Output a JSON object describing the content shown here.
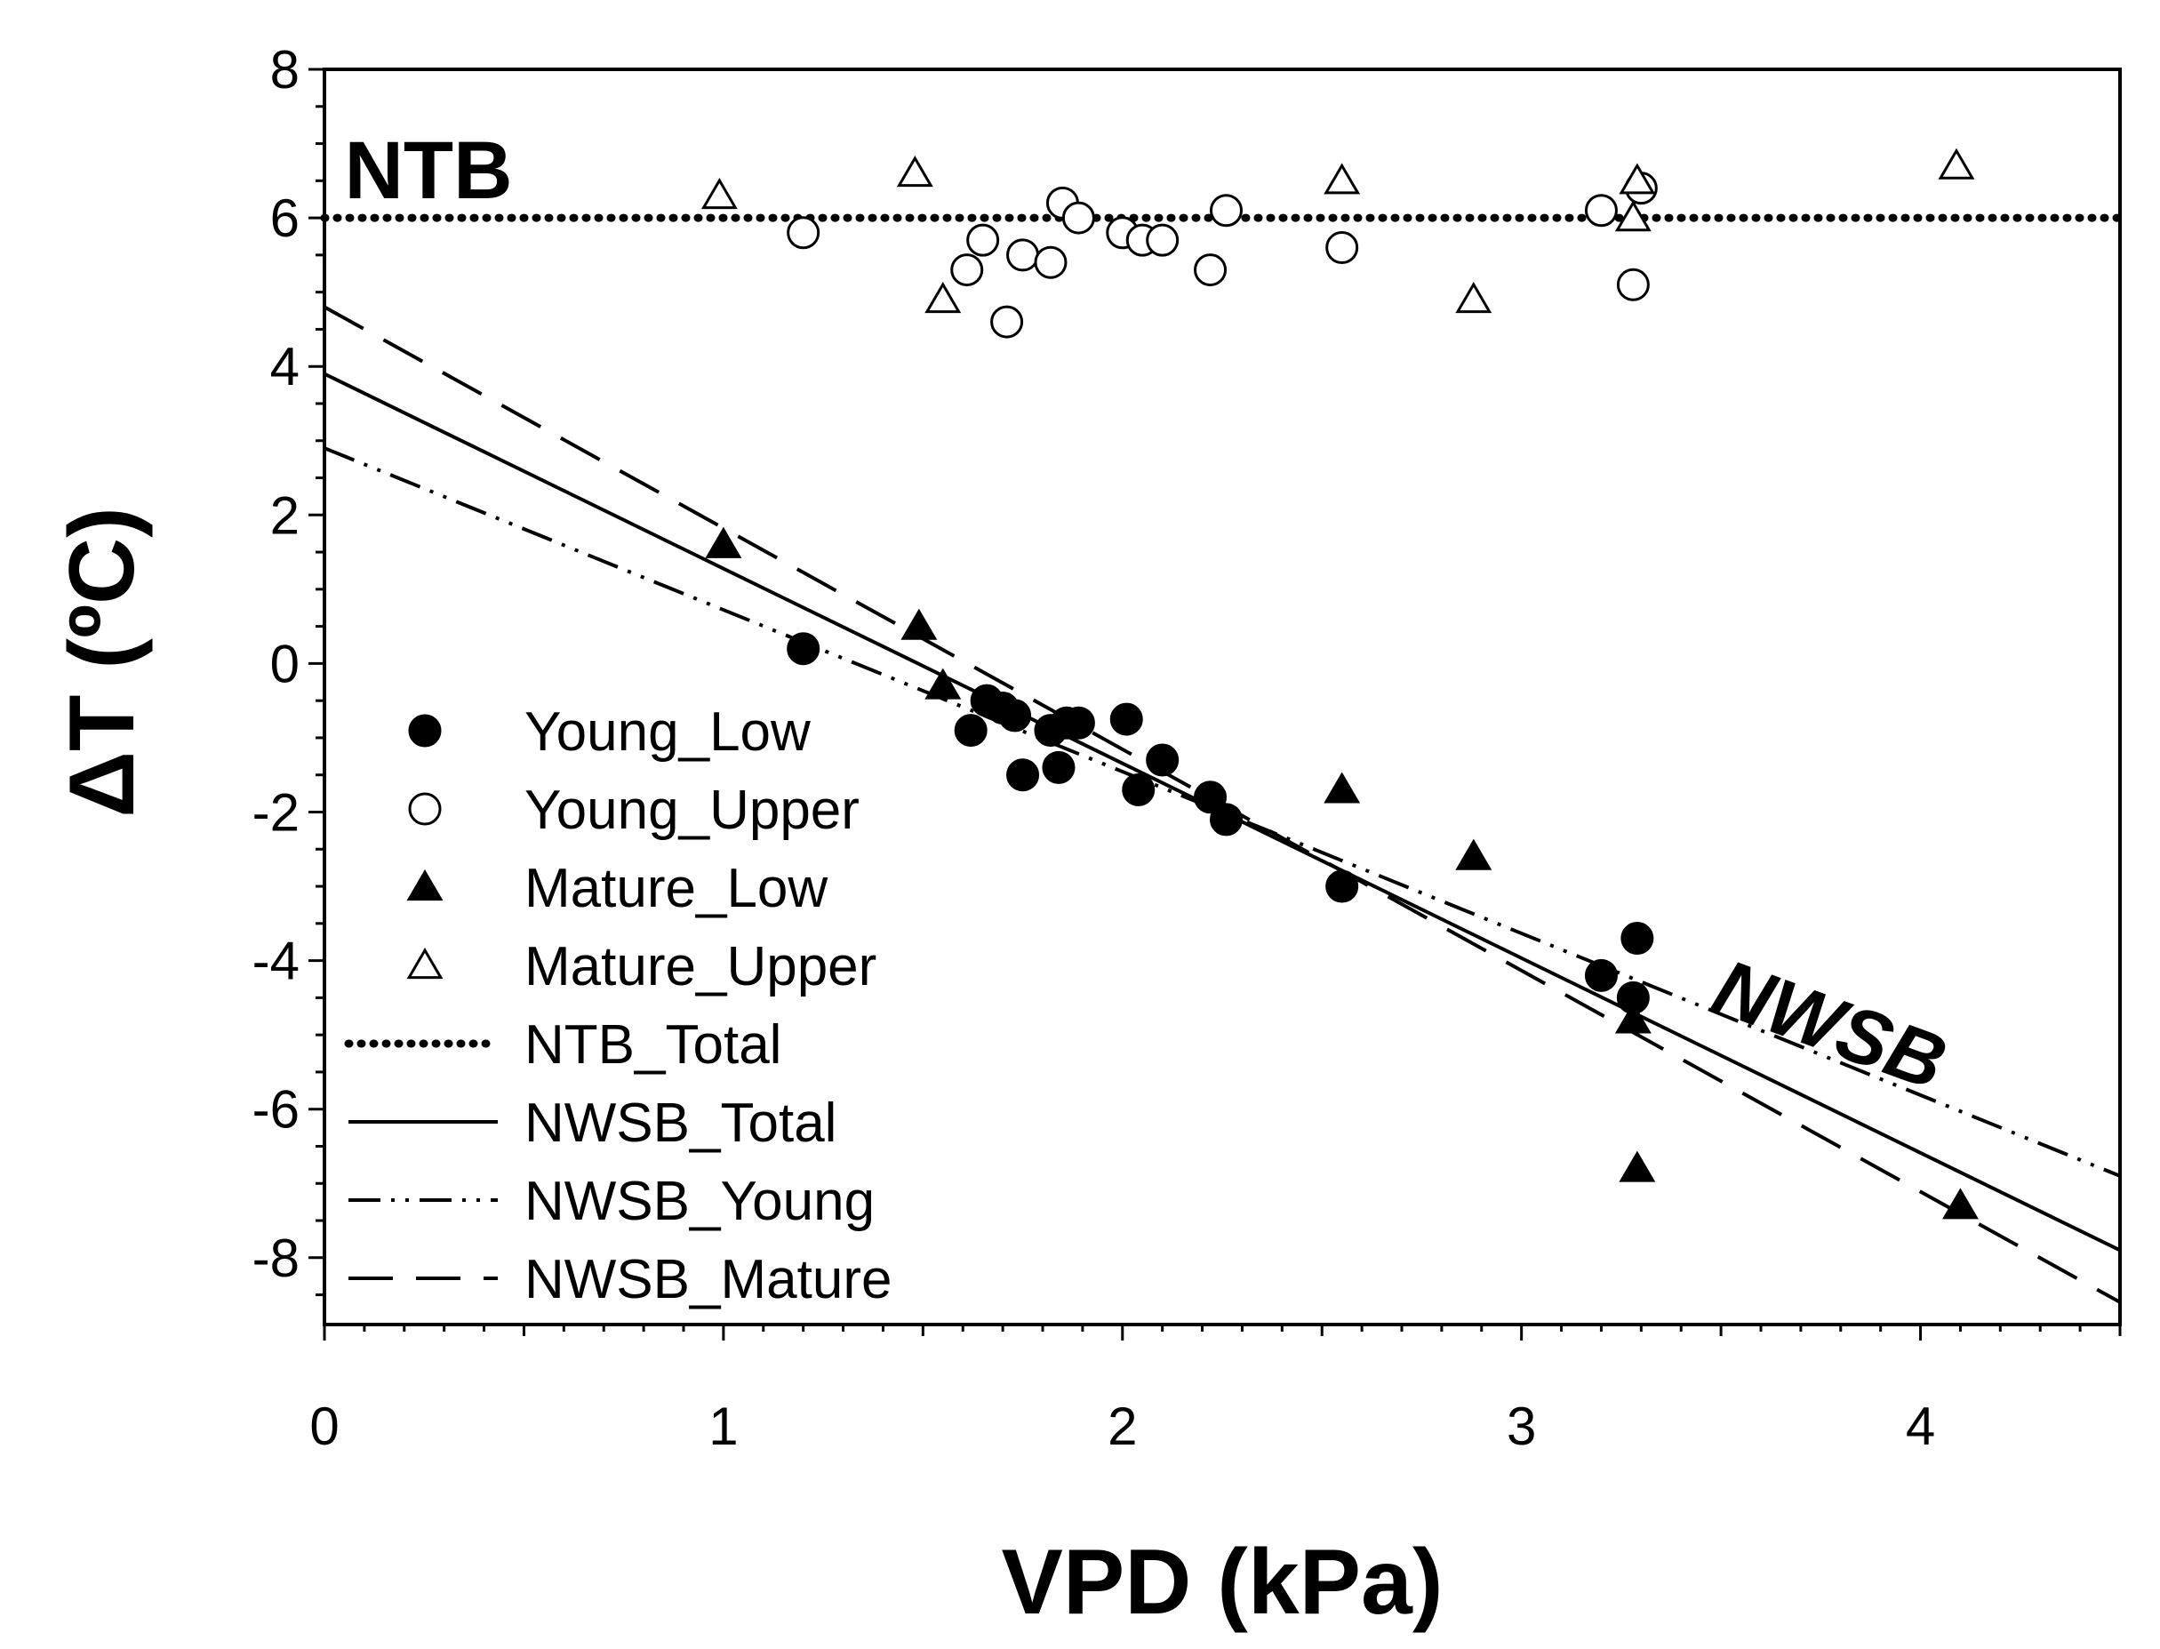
{
  "chart_data": {
    "type": "scatter",
    "xlabel": "VPD (kPa)",
    "ylabel": "ΔT (ºC)",
    "xlim": [
      0,
      4.5
    ],
    "ylim": [
      -8.9,
      8
    ],
    "xticks": [
      "0",
      "1",
      "2",
      "3",
      "4"
    ],
    "yticks": [
      "8",
      "6",
      "4",
      "2",
      "0",
      "-2",
      "-4",
      "-6",
      "-8"
    ],
    "grid": false,
    "legend_position": "lower-left",
    "annotations": [
      {
        "text": "NTB",
        "x": 0.05,
        "y": 6.6
      },
      {
        "text": "NWSB",
        "x": 3.75,
        "y": -5.2
      }
    ],
    "series": [
      {
        "name": "Young_Low",
        "marker": "filled-circle",
        "points": [
          [
            1.2,
            0.2
          ],
          [
            1.62,
            -0.9
          ],
          [
            1.66,
            -0.5
          ],
          [
            1.7,
            -0.6
          ],
          [
            1.73,
            -0.7
          ],
          [
            1.75,
            -1.5
          ],
          [
            1.82,
            -0.9
          ],
          [
            1.84,
            -1.4
          ],
          [
            1.86,
            -0.8
          ],
          [
            1.89,
            -0.8
          ],
          [
            2.01,
            -0.75
          ],
          [
            2.04,
            -1.7
          ],
          [
            2.1,
            -1.3
          ],
          [
            2.22,
            -1.8
          ],
          [
            2.26,
            -2.1
          ],
          [
            2.55,
            -3.0
          ],
          [
            3.2,
            -4.2
          ],
          [
            3.28,
            -4.5
          ],
          [
            3.29,
            -3.7
          ]
        ]
      },
      {
        "name": "Young_Upper",
        "marker": "open-circle",
        "points": [
          [
            1.2,
            5.8
          ],
          [
            1.61,
            5.3
          ],
          [
            1.65,
            5.7
          ],
          [
            1.71,
            4.6
          ],
          [
            1.75,
            5.5
          ],
          [
            1.82,
            5.4
          ],
          [
            1.85,
            6.2
          ],
          [
            1.89,
            6.0
          ],
          [
            2.0,
            5.8
          ],
          [
            2.05,
            5.7
          ],
          [
            2.1,
            5.7
          ],
          [
            2.22,
            5.3
          ],
          [
            2.26,
            6.1
          ],
          [
            2.55,
            5.6
          ],
          [
            3.2,
            6.1
          ],
          [
            3.28,
            5.1
          ],
          [
            3.3,
            6.4
          ]
        ]
      },
      {
        "name": "Mature_Low",
        "marker": "filled-triangle",
        "points": [
          [
            1.0,
            1.6
          ],
          [
            1.49,
            0.5
          ],
          [
            1.55,
            -0.3
          ],
          [
            2.55,
            -1.7
          ],
          [
            2.88,
            -2.6
          ],
          [
            3.28,
            -4.8
          ],
          [
            3.29,
            -6.8
          ],
          [
            4.1,
            -7.3
          ]
        ]
      },
      {
        "name": "Mature_Upper",
        "marker": "open-triangle",
        "points": [
          [
            0.99,
            6.3
          ],
          [
            1.48,
            6.6
          ],
          [
            1.55,
            4.9
          ],
          [
            2.55,
            6.5
          ],
          [
            2.88,
            4.9
          ],
          [
            3.28,
            6.0
          ],
          [
            3.29,
            6.5
          ],
          [
            4.09,
            6.7
          ]
        ]
      }
    ],
    "lines": [
      {
        "name": "NTB_Total",
        "style": "dotted",
        "x": [
          0,
          4.5
        ],
        "y": [
          6.0,
          6.0
        ]
      },
      {
        "name": "NWSB_Total",
        "style": "solid",
        "x": [
          0,
          4.5
        ],
        "y": [
          3.9,
          -7.9
        ]
      },
      {
        "name": "NWSB_Young",
        "style": "dash-dot-dot",
        "x": [
          0,
          4.5
        ],
        "y": [
          2.9,
          -6.9
        ]
      },
      {
        "name": "NWSB_Mature",
        "style": "dashed",
        "x": [
          0,
          4.5
        ],
        "y": [
          4.8,
          -8.6
        ]
      }
    ]
  }
}
